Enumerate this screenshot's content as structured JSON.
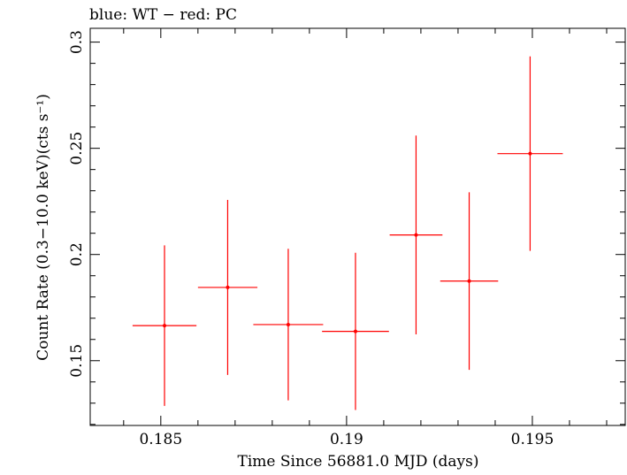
{
  "chart_data": {
    "type": "scatter",
    "title": "blue: WT − red: PC",
    "xlabel": "Time Since 56881.0 MJD (days)",
    "ylabel": "Count Rate (0.3−10.0 keV)(cts s⁻¹)",
    "xlim": [
      0.1831,
      0.1975
    ],
    "ylim": [
      0.1195,
      0.3065
    ],
    "x_ticks": [
      0.185,
      0.19,
      0.195
    ],
    "x_tick_labels": [
      "0.185",
      "0.19",
      "0.195"
    ],
    "y_ticks": [
      0.15,
      0.2,
      0.25,
      0.3
    ],
    "y_tick_labels": [
      "0.15",
      "0.2",
      "0.25",
      "0.3"
    ],
    "grid": false,
    "series": [
      {
        "color": "#ff0000",
        "points": [
          {
            "x": 0.1851,
            "xerr": 0.00086,
            "y": 0.1665,
            "yerr_low": 0.0378,
            "yerr_high": 0.0378
          },
          {
            "x": 0.1868,
            "xerr": 0.0008,
            "y": 0.1845,
            "yerr_low": 0.0412,
            "yerr_high": 0.0412
          },
          {
            "x": 0.18843,
            "xerr": 0.00094,
            "y": 0.167,
            "yerr_low": 0.0357,
            "yerr_high": 0.0357
          },
          {
            "x": 0.19024,
            "xerr": 0.0009,
            "y": 0.1638,
            "yerr_low": 0.037,
            "yerr_high": 0.037
          },
          {
            "x": 0.19187,
            "xerr": 0.00071,
            "y": 0.2092,
            "yerr_low": 0.0468,
            "yerr_high": 0.0468
          },
          {
            "x": 0.1933,
            "xerr": 0.00078,
            "y": 0.1875,
            "yerr_low": 0.0418,
            "yerr_high": 0.0418
          },
          {
            "x": 0.19494,
            "xerr": 0.00088,
            "y": 0.2475,
            "yerr_low": 0.0458,
            "yerr_high": 0.0458
          }
        ]
      }
    ]
  }
}
